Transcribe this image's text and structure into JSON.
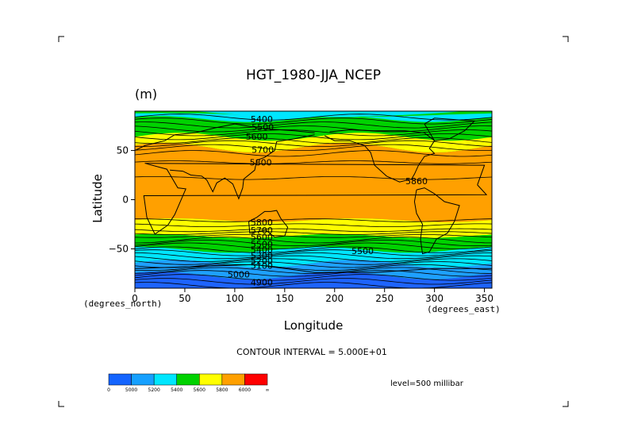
{
  "chart_data": {
    "type": "contour-map",
    "title": "HGT_1980-JJA_NCEP",
    "units": "(m)",
    "xlabel": "Longitude",
    "ylabel": "Latitude",
    "x_unit_label": "(degrees_east)",
    "y_unit_label": "(degrees_north)",
    "xlim": [
      0,
      357.5
    ],
    "ylim": [
      -90,
      90
    ],
    "x_ticks": [
      0,
      50,
      100,
      150,
      200,
      250,
      300,
      350
    ],
    "y_ticks": [
      50,
      0,
      -50
    ],
    "contour_interval_text": "CONTOUR INTERVAL = 5.000E+01",
    "level_text": "level=500 millibar",
    "contour_labels": [
      {
        "text": "5400",
        "lon": 127,
        "lat": 82
      },
      {
        "text": "5500",
        "lon": 128,
        "lat": 74
      },
      {
        "text": "5600",
        "lon": 122,
        "lat": 64
      },
      {
        "text": "5700",
        "lon": 128,
        "lat": 51
      },
      {
        "text": "5800",
        "lon": 126,
        "lat": 38
      },
      {
        "text": "5860",
        "lon": 282,
        "lat": 19
      },
      {
        "text": "5800",
        "lon": 127,
        "lat": -23
      },
      {
        "text": "5700",
        "lon": 127,
        "lat": -31
      },
      {
        "text": "5600",
        "lon": 127,
        "lat": -38
      },
      {
        "text": "5500",
        "lon": 127,
        "lat": -45
      },
      {
        "text": "5400",
        "lon": 127,
        "lat": -51
      },
      {
        "text": "5300",
        "lon": 127,
        "lat": -57
      },
      {
        "text": "5200",
        "lon": 127,
        "lat": -62
      },
      {
        "text": "5100",
        "lon": 127,
        "lat": -67
      },
      {
        "text": "5500",
        "lon": 228,
        "lat": -52
      },
      {
        "text": "5000",
        "lon": 104,
        "lat": -76
      },
      {
        "text": "4900",
        "lon": 127,
        "lat": -84
      }
    ],
    "colorbar": {
      "levels": [
        "0",
        "5000",
        "5200",
        "5400",
        "5600",
        "5800",
        "6000",
        "∞"
      ],
      "colors": [
        "#1464ff",
        "#16a0ff",
        "#00e6ff",
        "#00d200",
        "#ffff00",
        "#ffa000",
        "#ff0000"
      ]
    },
    "band_colors": {
      "below_5000": "#1e64ff",
      "5000_5200": "#1ea0ff",
      "5200_5400": "#00e6ff",
      "5400_5600": "#00d200",
      "5600_5800": "#ffff00",
      "5800_6000": "#ffa000"
    }
  }
}
